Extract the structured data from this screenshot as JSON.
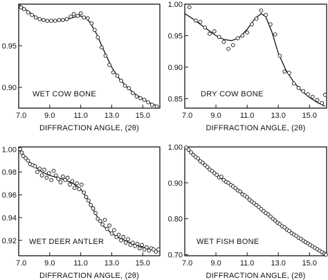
{
  "chart_data": [
    {
      "type": "scatter",
      "annotation": "WET COW BONE",
      "xlabel": "DIFFRACTION ANGLE, (2θ)",
      "xlim": [
        7.0,
        16.1
      ],
      "ylim": [
        0.875,
        1.0
      ],
      "x_ticks": [
        7.0,
        9.0,
        11.0,
        13.0,
        15.0
      ],
      "x_tick_labels": [
        "7.0",
        "9.0",
        "11.0",
        "13.0",
        "15.0"
      ],
      "y_ticks": [
        0.95,
        0.9
      ],
      "y_tick_labels": [
        "0.95",
        "0.90"
      ],
      "points": [
        [
          7.15,
          0.996
        ],
        [
          7.35,
          0.994
        ],
        [
          7.6,
          0.99
        ],
        [
          7.85,
          0.987
        ],
        [
          8.1,
          0.984
        ],
        [
          8.35,
          0.982
        ],
        [
          8.6,
          0.981
        ],
        [
          8.85,
          0.98
        ],
        [
          9.1,
          0.98
        ],
        [
          9.35,
          0.98
        ],
        [
          9.6,
          0.981
        ],
        [
          9.85,
          0.981
        ],
        [
          10.1,
          0.982
        ],
        [
          10.35,
          0.985
        ],
        [
          10.55,
          0.988
        ],
        [
          10.8,
          0.986
        ],
        [
          11.0,
          0.989
        ],
        [
          11.2,
          0.984
        ],
        [
          11.45,
          0.983
        ],
        [
          11.7,
          0.977
        ],
        [
          11.9,
          0.969
        ],
        [
          12.1,
          0.96
        ],
        [
          12.35,
          0.948
        ],
        [
          12.6,
          0.938
        ],
        [
          12.85,
          0.927
        ],
        [
          13.1,
          0.918
        ],
        [
          13.35,
          0.914
        ],
        [
          13.6,
          0.908
        ],
        [
          13.85,
          0.902
        ],
        [
          14.1,
          0.899
        ],
        [
          14.35,
          0.893
        ],
        [
          14.6,
          0.889
        ],
        [
          14.85,
          0.887
        ],
        [
          15.1,
          0.885
        ],
        [
          15.35,
          0.882
        ],
        [
          15.6,
          0.879
        ],
        [
          15.9,
          0.877
        ]
      ],
      "curve": [
        [
          7.0,
          1.0
        ],
        [
          7.5,
          0.993
        ],
        [
          8.0,
          0.986
        ],
        [
          8.5,
          0.981
        ],
        [
          9.0,
          0.98
        ],
        [
          9.5,
          0.98
        ],
        [
          10.0,
          0.981
        ],
        [
          10.5,
          0.984
        ],
        [
          10.9,
          0.986
        ],
        [
          11.3,
          0.984
        ],
        [
          11.6,
          0.978
        ],
        [
          12.0,
          0.965
        ],
        [
          12.5,
          0.944
        ],
        [
          13.0,
          0.924
        ],
        [
          13.5,
          0.91
        ],
        [
          14.0,
          0.9
        ],
        [
          14.5,
          0.892
        ],
        [
          15.0,
          0.886
        ],
        [
          15.5,
          0.881
        ],
        [
          16.0,
          0.877
        ]
      ]
    },
    {
      "type": "scatter",
      "annotation": "DRY COW BONE",
      "xlabel": "DIFFRACTION ANGLE, (2θ)",
      "xlim": [
        7.0,
        16.1
      ],
      "ylim": [
        0.835,
        1.0
      ],
      "x_ticks": [
        7.0,
        9.0,
        11.0,
        13.0,
        15.0
      ],
      "x_tick_labels": [
        "7.0",
        "9.0",
        "11.0",
        "13.0",
        "15.0"
      ],
      "y_ticks": [
        1.0,
        0.95,
        0.9,
        0.85
      ],
      "y_tick_labels": [
        "1.00",
        "0.95",
        "0.90",
        "0.85"
      ],
      "points": [
        [
          7.3,
          0.995
        ],
        [
          7.7,
          0.974
        ],
        [
          8.0,
          0.972
        ],
        [
          8.3,
          0.963
        ],
        [
          8.6,
          0.953
        ],
        [
          8.9,
          0.957
        ],
        [
          9.2,
          0.948
        ],
        [
          9.5,
          0.94
        ],
        [
          9.8,
          0.929
        ],
        [
          10.1,
          0.935
        ],
        [
          10.4,
          0.946
        ],
        [
          10.7,
          0.95
        ],
        [
          11.0,
          0.955
        ],
        [
          11.3,
          0.968
        ],
        [
          11.6,
          0.977
        ],
        [
          11.9,
          0.99
        ],
        [
          12.2,
          0.983
        ],
        [
          12.5,
          0.968
        ],
        [
          12.8,
          0.952
        ],
        [
          13.1,
          0.918
        ],
        [
          13.4,
          0.893
        ],
        [
          13.7,
          0.891
        ],
        [
          14.0,
          0.874
        ],
        [
          14.3,
          0.867
        ],
        [
          14.6,
          0.862
        ],
        [
          14.9,
          0.857
        ],
        [
          15.2,
          0.853
        ],
        [
          15.5,
          0.848
        ],
        [
          15.8,
          0.843
        ],
        [
          16.0,
          0.856
        ]
      ],
      "curve": [
        [
          7.0,
          0.985
        ],
        [
          7.5,
          0.977
        ],
        [
          8.0,
          0.968
        ],
        [
          8.5,
          0.959
        ],
        [
          9.0,
          0.95
        ],
        [
          9.5,
          0.944
        ],
        [
          10.0,
          0.942
        ],
        [
          10.5,
          0.947
        ],
        [
          11.0,
          0.96
        ],
        [
          11.5,
          0.977
        ],
        [
          11.9,
          0.985
        ],
        [
          12.2,
          0.98
        ],
        [
          12.6,
          0.955
        ],
        [
          13.0,
          0.922
        ],
        [
          13.5,
          0.895
        ],
        [
          14.0,
          0.876
        ],
        [
          14.5,
          0.862
        ],
        [
          15.0,
          0.852
        ],
        [
          15.5,
          0.844
        ],
        [
          16.0,
          0.838
        ]
      ]
    },
    {
      "type": "scatter",
      "annotation": "WET DEER ANTLER",
      "xlabel": "DIFFRACTION ANGLE, (2θ)",
      "xlim": [
        7.0,
        16.1
      ],
      "ylim": [
        0.9065,
        1.002
      ],
      "x_ticks": [
        7.0,
        9.0,
        11.0,
        13.0,
        15.0
      ],
      "x_tick_labels": [
        "7.0",
        "9.0",
        "11.0",
        "13.0",
        "15.0"
      ],
      "y_ticks": [
        1.0,
        0.98,
        0.96,
        0.94,
        0.92
      ],
      "y_tick_labels": [
        "1.00",
        "0.98",
        "0.96",
        "0.94",
        "0.92"
      ],
      "points": [
        [
          7.1,
          1.0
        ],
        [
          7.2,
          0.997
        ],
        [
          7.3,
          0.994
        ],
        [
          7.45,
          0.992
        ],
        [
          7.6,
          0.99
        ],
        [
          7.75,
          0.987
        ],
        [
          7.9,
          0.986
        ],
        [
          8.05,
          0.985
        ],
        [
          8.2,
          0.98
        ],
        [
          8.35,
          0.983
        ],
        [
          8.5,
          0.977
        ],
        [
          8.65,
          0.982
        ],
        [
          8.8,
          0.975
        ],
        [
          8.95,
          0.979
        ],
        [
          9.1,
          0.973
        ],
        [
          9.25,
          0.981
        ],
        [
          9.4,
          0.977
        ],
        [
          9.55,
          0.974
        ],
        [
          9.7,
          0.971
        ],
        [
          9.85,
          0.976
        ],
        [
          10.0,
          0.973
        ],
        [
          10.15,
          0.975
        ],
        [
          10.3,
          0.969
        ],
        [
          10.45,
          0.972
        ],
        [
          10.6,
          0.966
        ],
        [
          10.75,
          0.97
        ],
        [
          10.9,
          0.965
        ],
        [
          11.05,
          0.969
        ],
        [
          11.2,
          0.962
        ],
        [
          11.35,
          0.958
        ],
        [
          11.5,
          0.955
        ],
        [
          11.65,
          0.951
        ],
        [
          11.8,
          0.948
        ],
        [
          11.95,
          0.944
        ],
        [
          12.1,
          0.939
        ],
        [
          12.25,
          0.937
        ],
        [
          12.4,
          0.934
        ],
        [
          12.55,
          0.938
        ],
        [
          12.7,
          0.93
        ],
        [
          12.85,
          0.933
        ],
        [
          13.0,
          0.926
        ],
        [
          13.15,
          0.929
        ],
        [
          13.3,
          0.923
        ],
        [
          13.45,
          0.925
        ],
        [
          13.6,
          0.92
        ],
        [
          13.75,
          0.923
        ],
        [
          13.9,
          0.918
        ],
        [
          14.05,
          0.921
        ],
        [
          14.2,
          0.916
        ],
        [
          14.35,
          0.918
        ],
        [
          14.5,
          0.915
        ],
        [
          14.65,
          0.917
        ],
        [
          14.8,
          0.913
        ],
        [
          14.95,
          0.916
        ],
        [
          15.1,
          0.912
        ],
        [
          15.25,
          0.914
        ],
        [
          15.4,
          0.911
        ],
        [
          15.55,
          0.913
        ],
        [
          15.7,
          0.912
        ],
        [
          15.85,
          0.91
        ],
        [
          16.0,
          0.912
        ]
      ],
      "curve": [
        [
          7.0,
          1.0
        ],
        [
          7.5,
          0.991
        ],
        [
          8.0,
          0.985
        ],
        [
          8.5,
          0.98
        ],
        [
          9.0,
          0.977
        ],
        [
          9.5,
          0.975
        ],
        [
          10.0,
          0.973
        ],
        [
          10.5,
          0.97
        ],
        [
          11.0,
          0.965
        ],
        [
          11.5,
          0.955
        ],
        [
          12.0,
          0.942
        ],
        [
          12.5,
          0.932
        ],
        [
          13.0,
          0.926
        ],
        [
          13.5,
          0.922
        ],
        [
          14.0,
          0.919
        ],
        [
          14.5,
          0.916
        ],
        [
          15.0,
          0.914
        ],
        [
          15.5,
          0.912
        ],
        [
          16.0,
          0.911
        ]
      ]
    },
    {
      "type": "scatter",
      "annotation": "WET FISH BONE",
      "xlabel": "DIFFRACTION ANGLE, (2θ)",
      "xlim": [
        7.0,
        16.1
      ],
      "ylim": [
        0.697,
        1.0
      ],
      "x_ticks": [
        7.0,
        9.0,
        11.0,
        13.0,
        15.0
      ],
      "x_tick_labels": [
        "7.0",
        "9.0",
        "11.0",
        "13.0",
        "15.0"
      ],
      "y_ticks": [
        1.0,
        0.9,
        0.8,
        0.7
      ],
      "y_tick_labels": [
        "1.00",
        "0.90",
        "0.80",
        "0.70"
      ],
      "points": [
        [
          7.1,
          0.998
        ],
        [
          7.25,
          0.992
        ],
        [
          7.4,
          0.985
        ],
        [
          7.55,
          0.978
        ],
        [
          7.7,
          0.972
        ],
        [
          7.85,
          0.968
        ],
        [
          8.0,
          0.96
        ],
        [
          8.15,
          0.956
        ],
        [
          8.3,
          0.949
        ],
        [
          8.45,
          0.944
        ],
        [
          8.6,
          0.937
        ],
        [
          8.75,
          0.933
        ],
        [
          8.9,
          0.927
        ],
        [
          9.05,
          0.922
        ],
        [
          9.2,
          0.915
        ],
        [
          9.35,
          0.917
        ],
        [
          9.5,
          0.908
        ],
        [
          9.65,
          0.903
        ],
        [
          9.8,
          0.9
        ],
        [
          9.95,
          0.894
        ],
        [
          10.1,
          0.89
        ],
        [
          10.25,
          0.885
        ],
        [
          10.4,
          0.879
        ],
        [
          10.55,
          0.876
        ],
        [
          10.7,
          0.868
        ],
        [
          10.85,
          0.865
        ],
        [
          11.0,
          0.86
        ],
        [
          11.15,
          0.853
        ],
        [
          11.3,
          0.848
        ],
        [
          11.45,
          0.843
        ],
        [
          11.6,
          0.838
        ],
        [
          11.75,
          0.833
        ],
        [
          11.9,
          0.827
        ],
        [
          12.05,
          0.821
        ],
        [
          12.2,
          0.816
        ],
        [
          12.35,
          0.812
        ],
        [
          12.5,
          0.806
        ],
        [
          12.65,
          0.8
        ],
        [
          12.8,
          0.795
        ],
        [
          12.95,
          0.789
        ],
        [
          13.1,
          0.785
        ],
        [
          13.25,
          0.779
        ],
        [
          13.4,
          0.776
        ],
        [
          13.55,
          0.77
        ],
        [
          13.7,
          0.766
        ],
        [
          13.85,
          0.76
        ],
        [
          14.0,
          0.756
        ],
        [
          14.15,
          0.752
        ],
        [
          14.3,
          0.747
        ],
        [
          14.45,
          0.744
        ],
        [
          14.6,
          0.739
        ],
        [
          14.75,
          0.735
        ],
        [
          14.9,
          0.731
        ],
        [
          15.05,
          0.727
        ],
        [
          15.2,
          0.723
        ],
        [
          15.35,
          0.719
        ],
        [
          15.5,
          0.715
        ],
        [
          15.65,
          0.711
        ],
        [
          15.8,
          0.707
        ],
        [
          15.95,
          0.703
        ],
        [
          16.05,
          0.7
        ]
      ],
      "curve": [
        [
          7.0,
          1.0
        ],
        [
          7.5,
          0.981
        ],
        [
          8.0,
          0.962
        ],
        [
          8.5,
          0.943
        ],
        [
          9.0,
          0.924
        ],
        [
          9.5,
          0.906
        ],
        [
          10.0,
          0.891
        ],
        [
          10.5,
          0.876
        ],
        [
          11.0,
          0.859
        ],
        [
          11.5,
          0.842
        ],
        [
          12.0,
          0.824
        ],
        [
          12.5,
          0.806
        ],
        [
          13.0,
          0.788
        ],
        [
          13.5,
          0.772
        ],
        [
          14.0,
          0.757
        ],
        [
          14.5,
          0.743
        ],
        [
          15.0,
          0.729
        ],
        [
          15.5,
          0.715
        ],
        [
          16.0,
          0.702
        ]
      ]
    }
  ]
}
